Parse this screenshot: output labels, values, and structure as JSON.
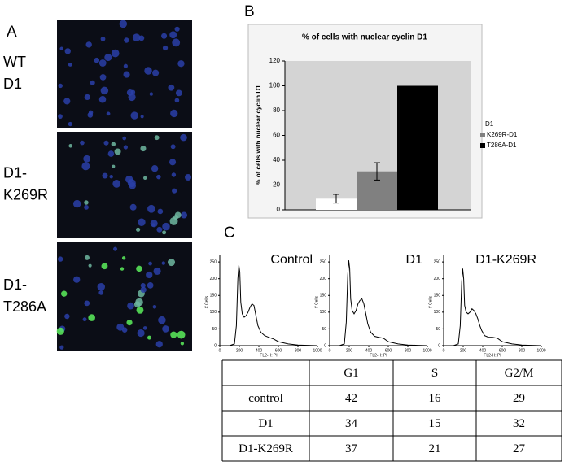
{
  "panel_labels": [
    "A",
    "B",
    "C"
  ],
  "images": [
    {
      "label": [
        "WT",
        "D1"
      ]
    },
    {
      "label": [
        "D1-",
        "K269R"
      ]
    },
    {
      "label": [
        "D1-",
        "T286A"
      ]
    }
  ],
  "chart_data": [
    {
      "type": "bar",
      "title": "% of cells with nuclear cyclin D1",
      "ylabel": "% of cells with nuclear cyclin D1",
      "categories": [
        null
      ],
      "ylim": [
        0,
        120
      ],
      "yticks": [
        0,
        20,
        40,
        60,
        80,
        100,
        120
      ],
      "legend": "right",
      "series": [
        {
          "name": "D1",
          "color": "#ffffff",
          "values": [
            9
          ],
          "errors": [
            3.5
          ]
        },
        {
          "name": "K269R-D1",
          "color": "#808080",
          "values": [
            31
          ],
          "errors": [
            7
          ]
        },
        {
          "name": "T286A-D1",
          "color": "#000000",
          "values": [
            100
          ],
          "errors": [
            null
          ]
        }
      ]
    },
    {
      "type": "line",
      "title": "Control",
      "xlabel": "FL2-H: PI",
      "ylabel": "# Cells",
      "xlim": [
        0,
        1000
      ],
      "ylim": [
        0,
        260
      ],
      "xticks": [
        0,
        200,
        400,
        600,
        800,
        1000
      ],
      "yticks": [
        0,
        50,
        100,
        150,
        200,
        250
      ],
      "x": [
        0,
        100,
        150,
        170,
        185,
        195,
        205,
        215,
        230,
        250,
        270,
        290,
        310,
        330,
        350,
        370,
        390,
        420,
        460,
        500,
        550,
        600,
        700,
        800,
        900,
        1000
      ],
      "series": [
        {
          "color": "#000000",
          "values": [
            0,
            0,
            5,
            60,
            200,
            240,
            220,
            130,
            95,
            85,
            90,
            100,
            115,
            125,
            120,
            90,
            60,
            40,
            30,
            25,
            20,
            12,
            5,
            2,
            1,
            0
          ]
        }
      ]
    },
    {
      "type": "line",
      "title": "D1",
      "xlabel": "FL2-H: PI",
      "ylabel": "# Cells",
      "xlim": [
        0,
        1000
      ],
      "ylim": [
        0,
        260
      ],
      "xticks": [
        0,
        200,
        400,
        600,
        800,
        1000
      ],
      "yticks": [
        0,
        50,
        100,
        150,
        200,
        250
      ],
      "x": [
        0,
        100,
        150,
        170,
        185,
        195,
        205,
        215,
        230,
        250,
        270,
        290,
        310,
        330,
        350,
        370,
        390,
        420,
        460,
        500,
        550,
        600,
        700,
        800,
        900,
        1000
      ],
      "series": [
        {
          "color": "#000000",
          "values": [
            0,
            0,
            5,
            70,
            210,
            255,
            230,
            140,
            105,
            95,
            105,
            125,
            135,
            140,
            125,
            95,
            65,
            40,
            28,
            25,
            22,
            12,
            5,
            2,
            1,
            0
          ]
        }
      ]
    },
    {
      "type": "line",
      "title": "D1-K269R",
      "xlabel": "FL2-H: PI",
      "ylabel": "# Cells",
      "xlim": [
        0,
        1000
      ],
      "ylim": [
        0,
        260
      ],
      "xticks": [
        0,
        200,
        400,
        600,
        800,
        1000
      ],
      "yticks": [
        0,
        50,
        100,
        150,
        200,
        250
      ],
      "x": [
        0,
        100,
        150,
        170,
        185,
        195,
        205,
        215,
        230,
        250,
        270,
        290,
        310,
        330,
        350,
        370,
        390,
        420,
        460,
        500,
        550,
        600,
        700,
        800,
        900,
        1000
      ],
      "series": [
        {
          "color": "#000000",
          "values": [
            0,
            0,
            5,
            60,
            190,
            230,
            200,
            120,
            100,
            95,
            100,
            110,
            105,
            95,
            80,
            60,
            45,
            30,
            25,
            25,
            22,
            12,
            5,
            2,
            1,
            0
          ]
        }
      ]
    }
  ],
  "table": {
    "columns": [
      "G1",
      "S",
      "G2/M"
    ],
    "rows": [
      {
        "label": "control",
        "values": [
          "42",
          "16",
          "29"
        ]
      },
      {
        "label": "D1",
        "values": [
          "34",
          "15",
          "32"
        ]
      },
      {
        "label": "D1-K269R",
        "values": [
          "37",
          "21",
          "27"
        ]
      }
    ]
  }
}
